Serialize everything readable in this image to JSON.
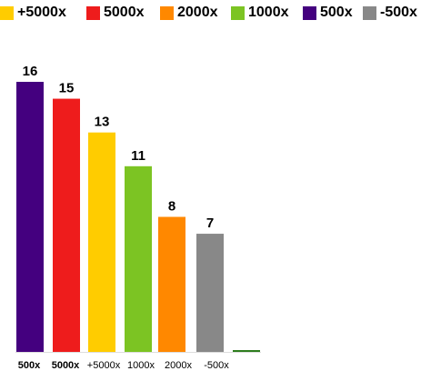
{
  "chart_data": {
    "type": "bar",
    "title": "",
    "xlabel": "",
    "ylabel": "",
    "ylim": [
      0,
      16
    ],
    "grid": false,
    "legend_position": "top",
    "legend": [
      {
        "name": "+5000x",
        "color": "#FFCC00"
      },
      {
        "name": "5000x",
        "color": "#EE1C1C"
      },
      {
        "name": "2000x",
        "color": "#FF8800"
      },
      {
        "name": "1000x",
        "color": "#7CC423"
      },
      {
        "name": "500x",
        "color": "#44007F"
      },
      {
        "name": "-500x",
        "color": "#888888"
      }
    ],
    "categories": [
      "500x",
      "5000x",
      "+5000x",
      "1000x",
      "2000x",
      "-500x",
      ""
    ],
    "values": [
      16,
      15,
      13,
      11,
      8,
      7,
      0
    ],
    "value_labels": [
      "16",
      "15",
      "13",
      "11",
      "8",
      "7",
      ""
    ],
    "colors": [
      "#44007F",
      "#EE1C1C",
      "#FFCC00",
      "#7CC423",
      "#FF8800",
      "#888888",
      "#2E7D1E"
    ]
  }
}
